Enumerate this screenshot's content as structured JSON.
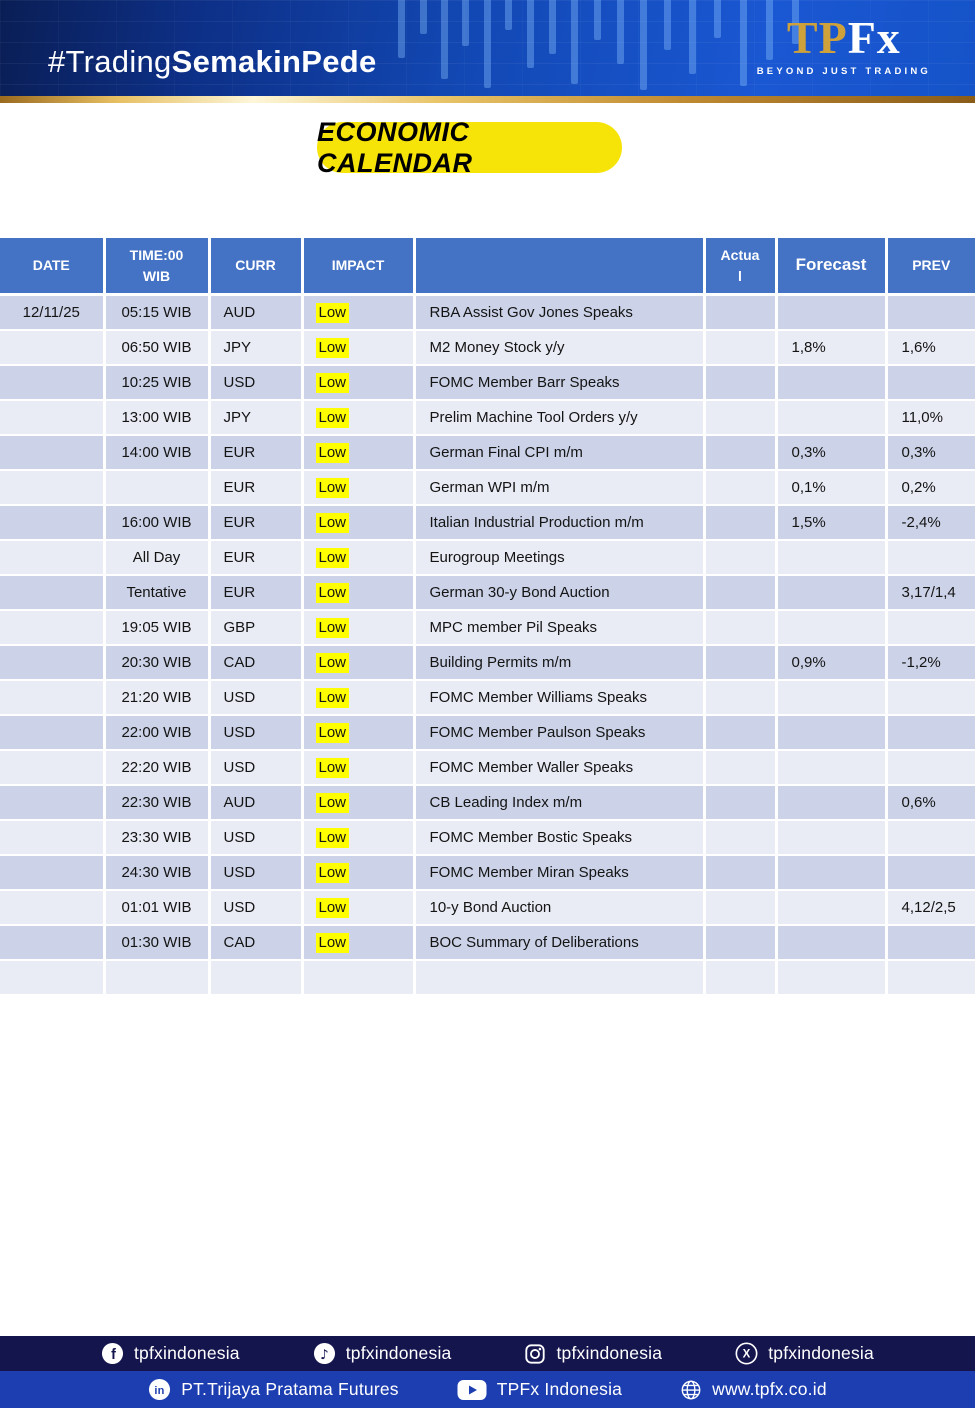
{
  "banner": {
    "hashtag": {
      "regular": "#Trading",
      "bold": "SemakinPede"
    },
    "logo": {
      "tp": "TP",
      "fx": "Fx",
      "tagline": "BEYOND JUST TRADING"
    }
  },
  "title": "ECONOMIC CALENDAR",
  "table": {
    "columns": [
      "DATE",
      "TIME:00 WIB",
      "CURR",
      "IMPACT",
      "",
      "Actual",
      "Forecast",
      "PREV"
    ],
    "rows": [
      {
        "date": "12/11/25",
        "time": "05:15 WIB",
        "curr": "AUD",
        "impact": "Low",
        "event": "RBA Assist Gov Jones Speaks",
        "actual": "",
        "forecast": "",
        "prev": ""
      },
      {
        "date": "",
        "time": "06:50 WIB",
        "curr": "JPY",
        "impact": "Low",
        "event": "M2 Money Stock y/y",
        "actual": "",
        "forecast": "1,8%",
        "prev": "1,6%"
      },
      {
        "date": "",
        "time": "10:25 WIB",
        "curr": "USD",
        "impact": "Low",
        "event": "FOMC Member Barr Speaks",
        "actual": "",
        "forecast": "",
        "prev": ""
      },
      {
        "date": "",
        "time": "13:00 WIB",
        "curr": "JPY",
        "impact": "Low",
        "event": "Prelim Machine Tool Orders y/y",
        "actual": "",
        "forecast": "",
        "prev": "11,0%"
      },
      {
        "date": "",
        "time": "14:00 WIB",
        "curr": "EUR",
        "impact": "Low",
        "event": "German Final CPI m/m",
        "actual": "",
        "forecast": "0,3%",
        "prev": "0,3%"
      },
      {
        "date": "",
        "time": "",
        "curr": "EUR",
        "impact": "Low",
        "event": "German WPI m/m",
        "actual": "",
        "forecast": "0,1%",
        "prev": "0,2%"
      },
      {
        "date": "",
        "time": "16:00 WIB",
        "curr": "EUR",
        "impact": "Low",
        "event": "Italian Industrial Production m/m",
        "actual": "",
        "forecast": "1,5%",
        "prev": "-2,4%"
      },
      {
        "date": "",
        "time": "All Day",
        "curr": "EUR",
        "impact": "Low",
        "event": "Eurogroup Meetings",
        "actual": "",
        "forecast": "",
        "prev": ""
      },
      {
        "date": "",
        "time": "Tentative",
        "curr": "EUR",
        "impact": "Low",
        "event": "German 30-y Bond Auction",
        "actual": "",
        "forecast": "",
        "prev": "3,17/1,4"
      },
      {
        "date": "",
        "time": "19:05 WIB",
        "curr": "GBP",
        "impact": "Low",
        "event": "MPC member Pil Speaks",
        "actual": "",
        "forecast": "",
        "prev": ""
      },
      {
        "date": "",
        "time": "20:30 WIB",
        "curr": "CAD",
        "impact": "Low",
        "event": "Building Permits m/m",
        "actual": "",
        "forecast": "0,9%",
        "prev": "-1,2%"
      },
      {
        "date": "",
        "time": "21:20 WIB",
        "curr": "USD",
        "impact": "Low",
        "event": "FOMC Member Williams Speaks",
        "actual": "",
        "forecast": "",
        "prev": ""
      },
      {
        "date": "",
        "time": "22:00 WIB",
        "curr": "USD",
        "impact": "Low",
        "event": "FOMC Member Paulson Speaks",
        "actual": "",
        "forecast": "",
        "prev": ""
      },
      {
        "date": "",
        "time": "22:20 WIB",
        "curr": "USD",
        "impact": "Low",
        "event": "FOMC Member Waller Speaks",
        "actual": "",
        "forecast": "",
        "prev": ""
      },
      {
        "date": "",
        "time": "22:30 WIB",
        "curr": "AUD",
        "impact": "Low",
        "event": "CB Leading Index m/m",
        "actual": "",
        "forecast": "",
        "prev": "0,6%"
      },
      {
        "date": "",
        "time": "23:30 WIB",
        "curr": "USD",
        "impact": "Low",
        "event": "FOMC Member Bostic Speaks",
        "actual": "",
        "forecast": "",
        "prev": ""
      },
      {
        "date": "",
        "time": "24:30 WIB",
        "curr": "USD",
        "impact": "Low",
        "event": "FOMC Member Miran Speaks",
        "actual": "",
        "forecast": "",
        "prev": ""
      },
      {
        "date": "",
        "time": "01:01 WIB",
        "curr": "USD",
        "impact": "Low",
        "event": "10-y Bond Auction",
        "actual": "",
        "forecast": "",
        "prev": "4,12/2,5"
      },
      {
        "date": "",
        "time": "01:30 WIB",
        "curr": "CAD",
        "impact": "Low",
        "event": "BOC Summary of Deliberations",
        "actual": "",
        "forecast": "",
        "prev": ""
      },
      {
        "date": "",
        "time": "",
        "curr": "",
        "impact": "",
        "event": "",
        "actual": "",
        "forecast": "",
        "prev": ""
      }
    ]
  },
  "footer": {
    "row1": [
      {
        "icon": "facebook-icon",
        "label": "tpfxindonesia"
      },
      {
        "icon": "tiktok-icon",
        "label": "tpfxindonesia"
      },
      {
        "icon": "instagram-icon",
        "label": "tpfxindonesia"
      },
      {
        "icon": "x-icon",
        "label": "tpfxindonesia"
      }
    ],
    "row2": [
      {
        "icon": "linkedin-icon",
        "label": "PT.Trijaya Pratama Futures"
      },
      {
        "icon": "youtube-icon",
        "label": "TPFx Indonesia"
      },
      {
        "icon": "globe-icon",
        "label": "www.tpfx.co.id"
      }
    ]
  },
  "colors": {
    "banner_blue": "#1248B4",
    "gold_divider": "#E7BF63",
    "title_yellow": "#F6E409",
    "table_header_blue": "#4472C4",
    "row_dark": "#CCD3E8",
    "row_light": "#E9EBF5",
    "impact_highlight": "#FFFF00",
    "footer_navy": "#15154E",
    "footer_blue": "#1D3EB0",
    "logo_gold": "#CFA13B"
  }
}
